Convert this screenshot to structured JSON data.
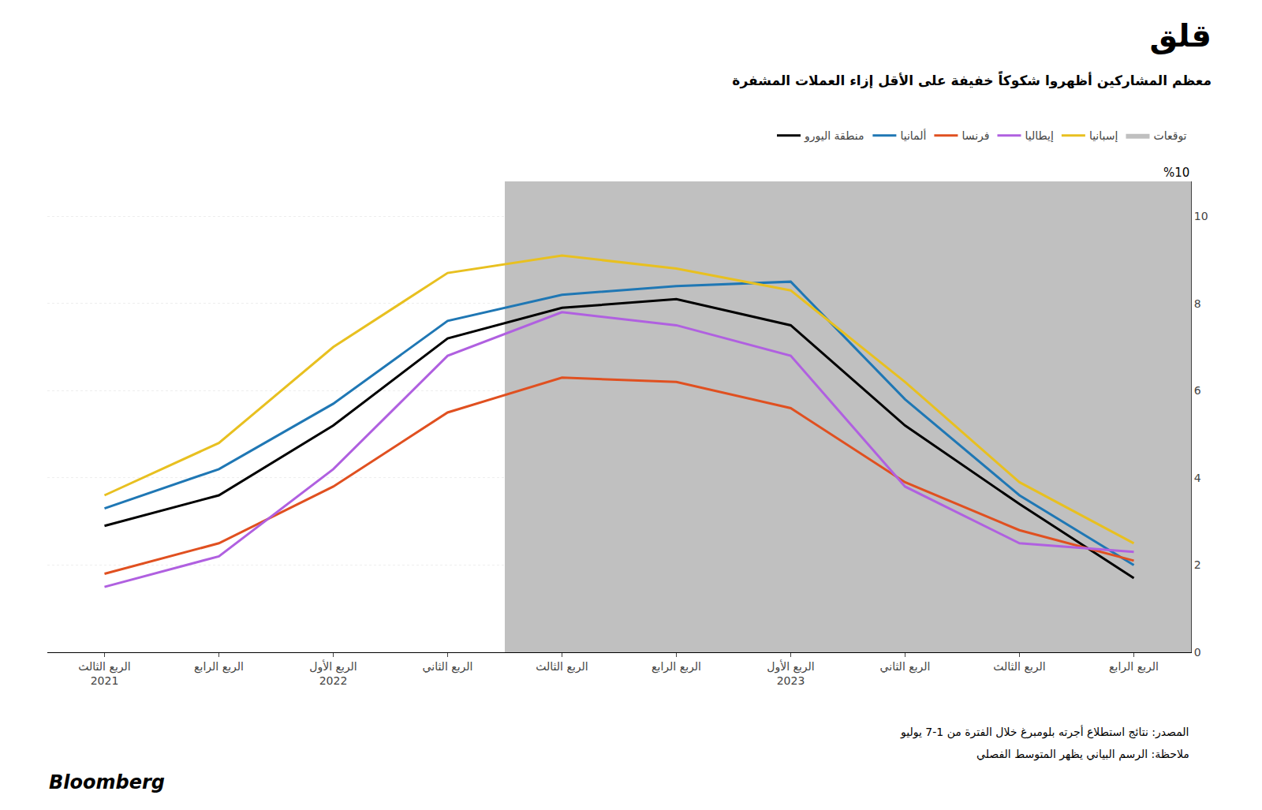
{
  "chart_data": {
    "type": "line",
    "title": "قلق",
    "subtitle": "معظم المشاركين أظهروا شكوكاً خفيفة على الأقل إزاء العملات المشفرة",
    "y_label": "%10",
    "source": "المصدر: نتائج استطلاع أجرته بلومبرغ خلال الفترة من 1-7 يوليو",
    "note": "ملاحظة: الرسم البياني يظهر المتوسط الفصلي",
    "logo": "Bloomberg",
    "categories": [
      "الربع الثالث\n2021",
      "الربع الرابع",
      "الربع الأول\n2022",
      "الربع الثاني",
      "الربع الثالث",
      "الربع الرابع",
      "الربع الأول\n2023",
      "الربع الثاني",
      "الربع الثالث",
      "الربع الرابع"
    ],
    "series": [
      {
        "name": "منطقة اليورو",
        "color": "#000000",
        "values": [
          2.9,
          3.6,
          5.2,
          7.2,
          7.9,
          8.1,
          7.5,
          5.2,
          3.4,
          1.7
        ]
      },
      {
        "name": "ألمانيا",
        "color": "#1f77b4",
        "values": [
          3.3,
          4.2,
          5.7,
          7.6,
          8.2,
          8.4,
          8.5,
          5.8,
          3.6,
          2.0
        ]
      },
      {
        "name": "فرنسا",
        "color": "#e05020",
        "values": [
          1.8,
          2.5,
          3.8,
          5.5,
          6.3,
          6.2,
          5.6,
          3.9,
          2.8,
          2.1
        ]
      },
      {
        "name": "إيطاليا",
        "color": "#b060e0",
        "values": [
          1.5,
          2.2,
          4.2,
          6.8,
          7.8,
          7.5,
          6.8,
          3.8,
          2.5,
          2.3
        ]
      },
      {
        "name": "إسبانيا",
        "color": "#e8c020",
        "values": [
          3.6,
          4.8,
          7.0,
          8.7,
          9.1,
          8.8,
          8.3,
          6.2,
          3.9,
          2.5
        ]
      }
    ],
    "shaded": {
      "name": "توقعات",
      "color": "#c0c0c0",
      "start": 4,
      "end": 9
    },
    "ylim": [
      0,
      10.8
    ],
    "yticks": [
      0,
      2,
      4,
      6,
      8,
      10
    ],
    "grid": true
  }
}
